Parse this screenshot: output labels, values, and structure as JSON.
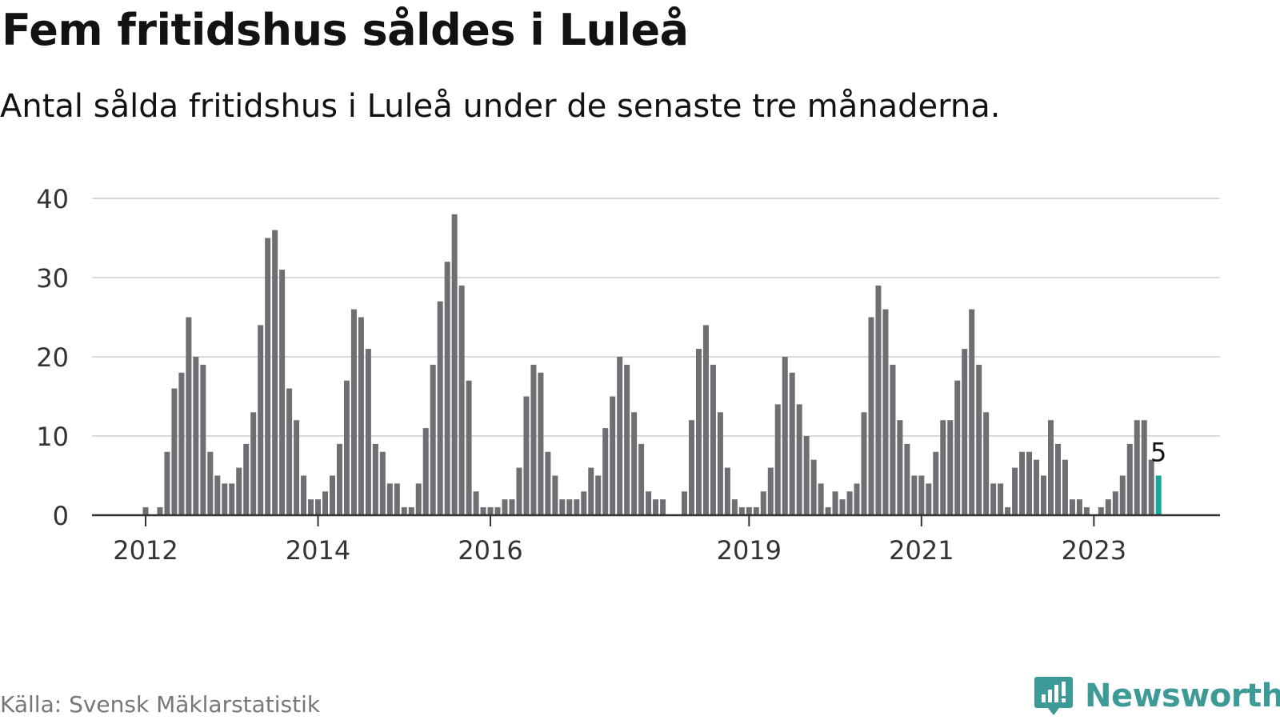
{
  "title": "Fem fritidshus såldes i Luleå",
  "subtitle": "Antal sålda fritidshus i Luleå under de senaste tre månaderna.",
  "source": "Källa: Svensk Mäklarstatistik",
  "brand": "Newsworthy",
  "colors": {
    "bar": "#6e6e73",
    "highlight": "#1aa69b",
    "grid": "#d9d9d9",
    "axis": "#333333",
    "brand": "#3c9a97"
  },
  "chart_data": {
    "type": "bar",
    "ylim": [
      0,
      40
    ],
    "yticks": [
      0,
      10,
      20,
      30,
      40
    ],
    "xticks": [
      {
        "label": "2012",
        "index": 0
      },
      {
        "label": "2014",
        "index": 24
      },
      {
        "label": "2016",
        "index": 48
      },
      {
        "label": "2019",
        "index": 84
      },
      {
        "label": "2021",
        "index": 108
      },
      {
        "label": "2023",
        "index": 132
      }
    ],
    "start": "2012-01",
    "values": [
      1,
      0,
      1,
      8,
      16,
      18,
      25,
      20,
      19,
      8,
      5,
      4,
      4,
      6,
      9,
      13,
      24,
      35,
      36,
      31,
      16,
      12,
      5,
      2,
      2,
      3,
      5,
      9,
      17,
      26,
      25,
      21,
      9,
      8,
      4,
      4,
      1,
      1,
      4,
      11,
      19,
      27,
      32,
      38,
      29,
      17,
      3,
      1,
      1,
      1,
      2,
      2,
      6,
      15,
      19,
      18,
      8,
      5,
      2,
      2,
      2,
      3,
      6,
      5,
      11,
      15,
      20,
      19,
      13,
      9,
      3,
      2,
      2,
      0,
      0,
      3,
      12,
      21,
      24,
      19,
      13,
      6,
      2,
      1,
      1,
      1,
      3,
      6,
      14,
      20,
      18,
      14,
      10,
      7,
      4,
      1,
      3,
      2,
      3,
      4,
      13,
      25,
      29,
      26,
      19,
      12,
      9,
      5,
      5,
      4,
      8,
      12,
      12,
      17,
      21,
      26,
      19,
      13,
      4,
      4,
      1,
      6,
      8,
      8,
      7,
      5,
      12,
      9,
      7,
      2,
      2,
      1,
      0,
      1,
      2,
      3,
      5,
      9,
      12,
      12,
      7,
      5
    ],
    "highlight_index": 141,
    "highlight_label": "5"
  }
}
